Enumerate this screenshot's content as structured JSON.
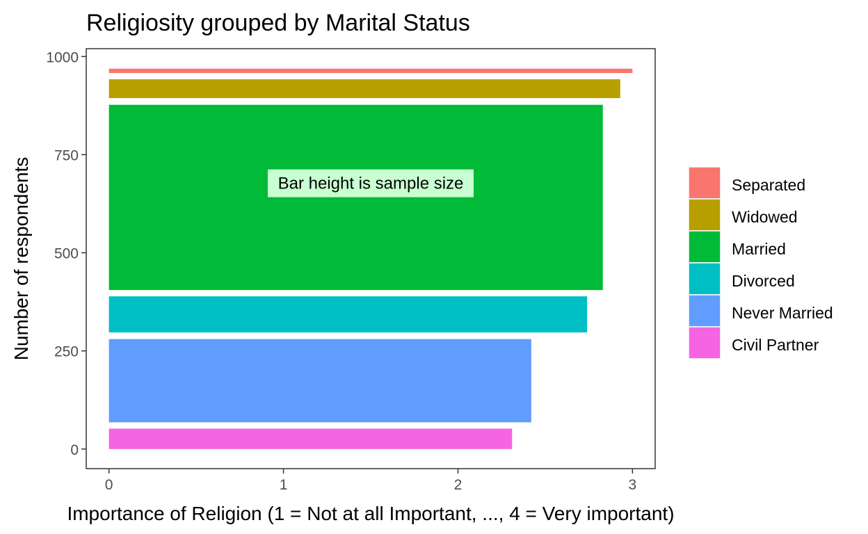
{
  "chart_data": {
    "type": "bar",
    "orientation": "horizontal",
    "title": "Religiosity grouped by Marital Status",
    "xlabel": "Importance of Religion (1 = Not at all Important, ..., 4 = Very important)",
    "ylabel": "Number of respondents",
    "xlim": [
      -0.13,
      3.13
    ],
    "ylim": [
      -50,
      1020
    ],
    "xticks": [
      0,
      1,
      2,
      3
    ],
    "yticks": [
      0,
      250,
      500,
      750,
      1000
    ],
    "grid": false,
    "legend_position": "right",
    "series": [
      {
        "name": "Civil Partner",
        "value": 2.31,
        "y_start": 0,
        "y_end": 52,
        "color": "#F564E3"
      },
      {
        "name": "Never Married",
        "value": 2.42,
        "y_start": 68,
        "y_end": 280,
        "color": "#619CFF"
      },
      {
        "name": "Divorced",
        "value": 2.74,
        "y_start": 297,
        "y_end": 389,
        "color": "#00BFC4"
      },
      {
        "name": "Married",
        "value": 2.83,
        "y_start": 405,
        "y_end": 877,
        "color": "#00BA38"
      },
      {
        "name": "Widowed",
        "value": 2.93,
        "y_start": 894,
        "y_end": 942,
        "color": "#B79F00"
      },
      {
        "name": "Separated",
        "value": 3.0,
        "y_start": 958,
        "y_end": 969,
        "color": "#F8766D"
      }
    ],
    "legend_order": [
      "Separated",
      "Widowed",
      "Married",
      "Divorced",
      "Never Married",
      "Civil Partner"
    ],
    "annotation": {
      "text": "Bar height is sample size",
      "x": 1.5,
      "y": 677,
      "fill": "#c8ffd0"
    }
  }
}
